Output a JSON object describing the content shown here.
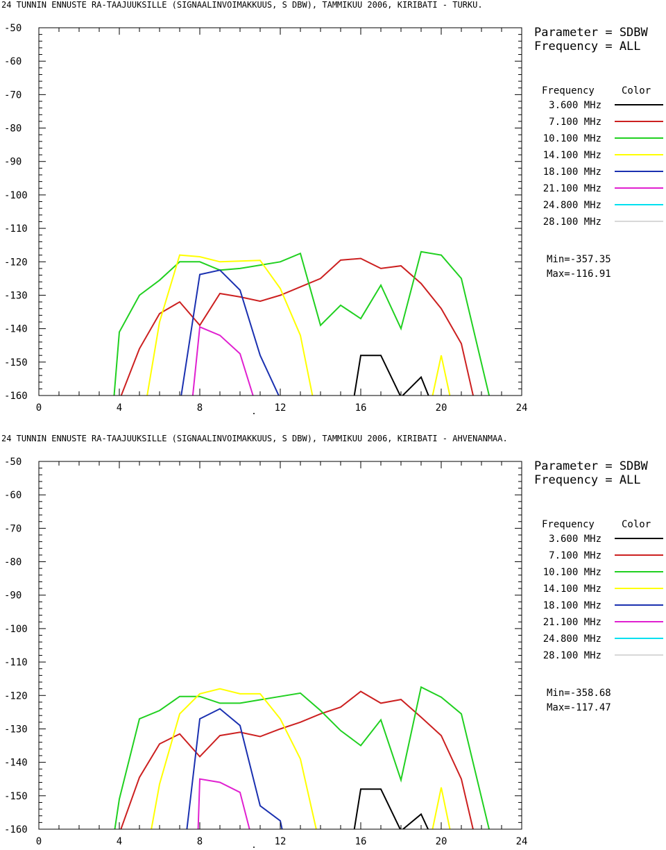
{
  "panels": [
    {
      "title": "24 TUNNIN ENNUSTE RA-TAAJUUKSILLE (SIGNAALINVOIMAKKUUS, S DBW), TAMMIKUU 2006, KIRIBATI - TURKU.",
      "legend": {
        "param_line": "Parameter = SDBW",
        "freq_line": "Frequency = ALL",
        "col_freq": "Frequency",
        "col_color": "Color",
        "min_text": "Min=-357.35",
        "max_text": "Max=-116.91"
      }
    },
    {
      "title": "24 TUNNIN ENNUSTE RA-TAAJUUKSILLE (SIGNAALINVOIMAKKUUS, S DBW), TAMMIKUU 2006, KIRIBATI - AHVENANMAA.",
      "legend": {
        "param_line": "Parameter = SDBW",
        "freq_line": "Frequency = ALL",
        "col_freq": "Frequency",
        "col_color": "Color",
        "min_text": "Min=-358.68",
        "max_text": "Max=-117.47"
      }
    }
  ],
  "chart_data": [
    {
      "type": "line",
      "title": "24 TUNNIN ENNUSTE RA-TAAJUUKSILLE (SIGNAALINVOIMAKKUUS, S DBW), TAMMIKUU 2006, KIRIBATI - TURKU.",
      "xlim": [
        0,
        24
      ],
      "ylim": [
        -160,
        -50
      ],
      "xticks": [
        "0",
        "4",
        "8",
        "12",
        "16",
        "20",
        "24"
      ],
      "yticks": [
        "-50",
        "-60",
        "-70",
        "-80",
        "-90",
        "-100",
        "-110",
        "-120",
        "-130",
        "-140",
        "-150",
        "-160"
      ],
      "series": [
        {
          "name": "3.600 MHz",
          "color": "#000000",
          "points": [
            [
              15.6,
              -163
            ],
            [
              16,
              -148
            ],
            [
              17,
              -148
            ],
            [
              18,
              -160.5
            ],
            [
              19,
              -154.5
            ],
            [
              19.5,
              -162
            ]
          ]
        },
        {
          "name": "7.100 MHz",
          "color": "#cc2020",
          "points": [
            [
              3.9,
              -163
            ],
            [
              5,
              -146
            ],
            [
              6,
              -135.5
            ],
            [
              7,
              -132
            ],
            [
              8,
              -139
            ],
            [
              9,
              -129.5
            ],
            [
              10,
              -130.5
            ],
            [
              11,
              -131.8
            ],
            [
              12,
              -130
            ],
            [
              13,
              -127.5
            ],
            [
              14,
              -125
            ],
            [
              15,
              -119.5
            ],
            [
              16,
              -119
            ],
            [
              17,
              -122
            ],
            [
              18,
              -121.2
            ],
            [
              19,
              -126.5
            ],
            [
              20,
              -134
            ],
            [
              21,
              -144.5
            ],
            [
              21.7,
              -163
            ]
          ]
        },
        {
          "name": "10.100 MHz",
          "color": "#20d020",
          "points": [
            [
              3.7,
              -163
            ],
            [
              4,
              -141
            ],
            [
              5,
              -130
            ],
            [
              6,
              -125.5
            ],
            [
              7,
              -120
            ],
            [
              8,
              -120
            ],
            [
              9,
              -122.5
            ],
            [
              10,
              -122
            ],
            [
              11,
              -121
            ],
            [
              12,
              -120
            ],
            [
              13,
              -117.5
            ],
            [
              14,
              -139
            ],
            [
              15,
              -133
            ],
            [
              16,
              -137
            ],
            [
              17,
              -127
            ],
            [
              18,
              -140
            ],
            [
              19,
              -117
            ],
            [
              20,
              -118
            ],
            [
              21,
              -125
            ],
            [
              22.5,
              -163
            ]
          ]
        },
        {
          "name": "14.100 MHz",
          "color": "#ffff00",
          "points": [
            [
              5.3,
              -163
            ],
            [
              6,
              -138
            ],
            [
              7,
              -118
            ],
            [
              8,
              -118.5
            ],
            [
              9,
              -120
            ],
            [
              10,
              -119.8
            ],
            [
              11,
              -119.6
            ],
            [
              12,
              -128
            ],
            [
              13,
              -142
            ],
            [
              13.7,
              -163
            ]
          ]
        },
        {
          "name": "18.100 MHz",
          "color": "#1a30b0",
          "points": [
            [
              7,
              -163
            ],
            [
              8,
              -123.8
            ],
            [
              9,
              -122.5
            ],
            [
              10,
              -128.5
            ],
            [
              11,
              -148
            ],
            [
              12,
              -161
            ]
          ]
        },
        {
          "name": "21.100 MHz",
          "color": "#e020d0",
          "points": [
            [
              7.6,
              -163
            ],
            [
              8,
              -139.5
            ],
            [
              9,
              -142
            ],
            [
              10,
              -147.5
            ],
            [
              10.8,
              -163
            ]
          ]
        },
        {
          "name": "24.800 MHz",
          "color": "#00e0f0",
          "points": []
        },
        {
          "name": "28.100 MHz",
          "color": "#d8d8d8",
          "points": []
        },
        {
          "name": "",
          "color": "#ffff00",
          "points": [
            [
              19.5,
              -162
            ],
            [
              20,
              -148
            ],
            [
              20.5,
              -162
            ]
          ]
        }
      ]
    },
    {
      "type": "line",
      "title": "24 TUNNIN ENNUSTE RA-TAAJUUKSILLE (SIGNAALINVOIMAKKUUS, S DBW), TAMMIKUU 2006, KIRIBATI - AHVENANMAA.",
      "xlim": [
        0,
        24
      ],
      "ylim": [
        -160,
        -50
      ],
      "xticks": [
        "0",
        "4",
        "8",
        "12",
        "16",
        "20",
        "24"
      ],
      "yticks": [
        "-50",
        "-60",
        "-70",
        "-80",
        "-90",
        "-100",
        "-110",
        "-120",
        "-130",
        "-140",
        "-150",
        "-160"
      ],
      "series": [
        {
          "name": "3.600 MHz",
          "color": "#000000",
          "points": [
            [
              15.6,
              -163
            ],
            [
              16,
              -148
            ],
            [
              17,
              -148
            ],
            [
              18,
              -160.5
            ],
            [
              19,
              -155.5
            ],
            [
              19.5,
              -162
            ]
          ]
        },
        {
          "name": "7.100 MHz",
          "color": "#cc2020",
          "points": [
            [
              3.9,
              -163
            ],
            [
              5,
              -144.5
            ],
            [
              6,
              -134.5
            ],
            [
              7,
              -131.5
            ],
            [
              8,
              -138.3
            ],
            [
              9,
              -132
            ],
            [
              10,
              -131
            ],
            [
              11,
              -132.3
            ],
            [
              12,
              -130
            ],
            [
              13,
              -128
            ],
            [
              14,
              -125.5
            ],
            [
              15,
              -123.5
            ],
            [
              16,
              -118.8
            ],
            [
              17,
              -122.3
            ],
            [
              18,
              -121.2
            ],
            [
              19,
              -126.5
            ],
            [
              20,
              -132
            ],
            [
              21,
              -145
            ],
            [
              21.7,
              -163
            ]
          ]
        },
        {
          "name": "10.100 MHz",
          "color": "#20d020",
          "points": [
            [
              3.7,
              -163
            ],
            [
              4,
              -151
            ],
            [
              5,
              -127
            ],
            [
              6,
              -124.5
            ],
            [
              7,
              -120.3
            ],
            [
              8,
              -120.3
            ],
            [
              9,
              -122.3
            ],
            [
              10,
              -122.3
            ],
            [
              11,
              -121.3
            ],
            [
              12,
              -120.3
            ],
            [
              13,
              -119.3
            ],
            [
              14,
              -124.5
            ],
            [
              15,
              -130.5
            ],
            [
              16,
              -135
            ],
            [
              17,
              -127.3
            ],
            [
              18,
              -145.3
            ],
            [
              19,
              -117.5
            ],
            [
              20,
              -120.5
            ],
            [
              21,
              -125.5
            ],
            [
              22.5,
              -163
            ]
          ]
        },
        {
          "name": "14.100 MHz",
          "color": "#ffff00",
          "points": [
            [
              5.5,
              -163
            ],
            [
              6,
              -146.5
            ],
            [
              7,
              -125.5
            ],
            [
              8,
              -119.5
            ],
            [
              9,
              -118
            ],
            [
              10,
              -119.5
            ],
            [
              11,
              -119.5
            ],
            [
              12,
              -127
            ],
            [
              13,
              -139
            ],
            [
              13.9,
              -163
            ]
          ]
        },
        {
          "name": "18.100 MHz",
          "color": "#1a30b0",
          "points": [
            [
              7.3,
              -163
            ],
            [
              8,
              -127
            ],
            [
              9,
              -124
            ],
            [
              10,
              -129
            ],
            [
              11,
              -153
            ],
            [
              12,
              -157.5
            ],
            [
              12.2,
              -163
            ]
          ]
        },
        {
          "name": "21.100 MHz",
          "color": "#e020d0",
          "points": [
            [
              7.9,
              -163
            ],
            [
              8,
              -145
            ],
            [
              9,
              -146
            ],
            [
              10,
              -149
            ],
            [
              10.6,
              -163
            ]
          ]
        },
        {
          "name": "24.800 MHz",
          "color": "#00e0f0",
          "points": []
        },
        {
          "name": "28.100 MHz",
          "color": "#d8d8d8",
          "points": []
        },
        {
          "name": "",
          "color": "#ffff00",
          "points": [
            [
              19.5,
              -162
            ],
            [
              20,
              -147.5
            ],
            [
              20.5,
              -162
            ]
          ]
        }
      ]
    }
  ]
}
